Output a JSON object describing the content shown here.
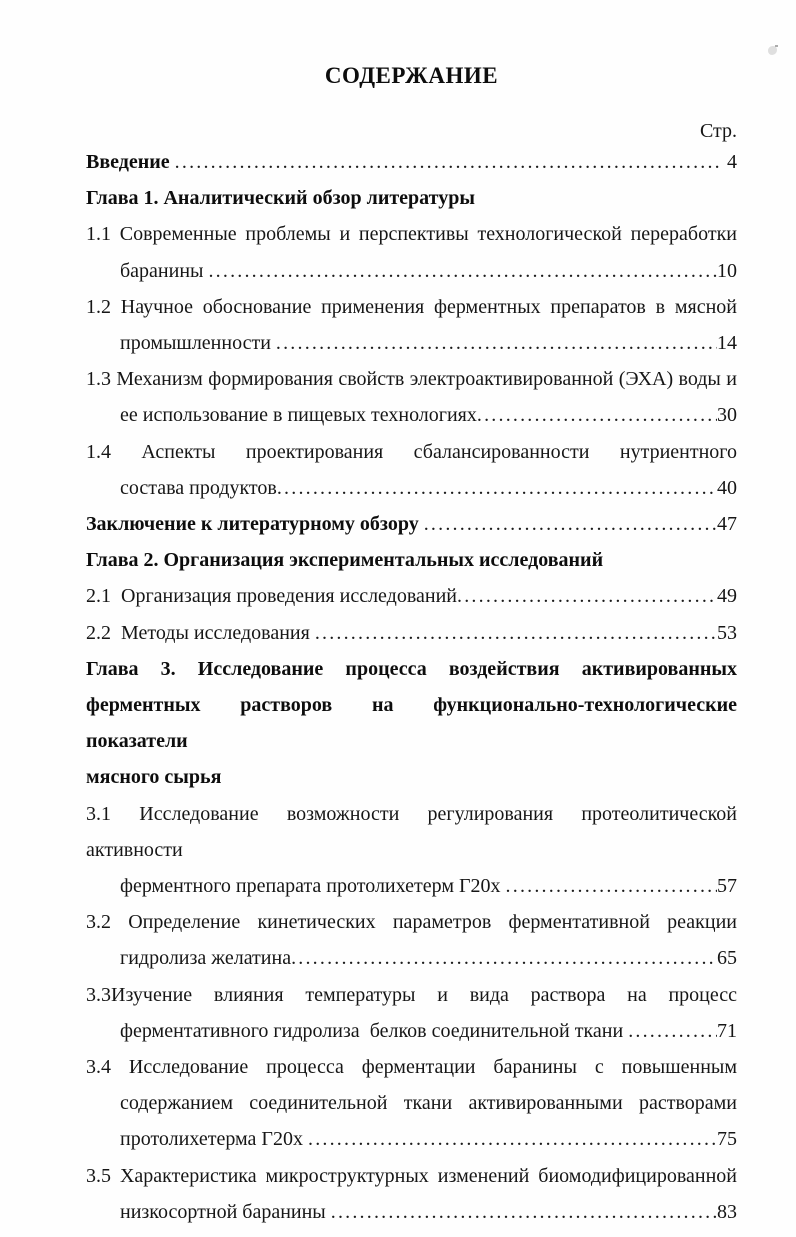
{
  "page": {
    "title": "СОДЕРЖАНИЕ",
    "page_column_label": "Стр."
  },
  "toc": {
    "lines": [
      {
        "text": "Введение ",
        "bold": true,
        "leader": true,
        "page": "4",
        "page_gap": true
      },
      {
        "text": "Глава 1. Аналитический обзор литературы",
        "bold": true
      },
      {
        "text": "1.1 Современные проблемы и перспективы технологической переработки",
        "justify": true
      },
      {
        "text": "баранины ",
        "indent": 1,
        "leader": true,
        "page": "10"
      },
      {
        "text": "1.2 Научное обоснование применения ферментных препаратов в мясной",
        "justify": true
      },
      {
        "text": "промышленности ",
        "indent": 1,
        "leader": true,
        "page": "14"
      },
      {
        "text": "1.3 Механизм формирования свойств электроактивированной (ЭХА) воды и",
        "justify": true
      },
      {
        "text": "ее использование в пищевых технологиях",
        "indent": 1,
        "leader": true,
        "page": "30"
      },
      {
        "text": "1.4 Аспекты проектирования сбалансированности нутриентного",
        "justify": true
      },
      {
        "text": "состава продуктов",
        "indent": 1,
        "leader": true,
        "page": "40"
      },
      {
        "text": "Заключение к литературному обзору ",
        "bold": true,
        "leader": true,
        "page": "47"
      },
      {
        "text": "Глава 2. Организация экспериментальных исследований",
        "bold": true
      },
      {
        "text": "2.1  Организация проведения исследований",
        "leader": true,
        "page": "49"
      },
      {
        "text": "2.2  Методы исследования ",
        "leader": true,
        "page": "53"
      },
      {
        "text": "Глава 3. Исследование процесса воздействия активированных",
        "bold": true,
        "justify": true
      },
      {
        "text": "ферментных растворов на функционально-технологические показатели",
        "bold": true,
        "justify": true
      },
      {
        "text": "мясного сырья",
        "bold": true
      },
      {
        "text": "3.1 Исследование возможности регулирования протеолитической активности",
        "justify": true
      },
      {
        "text": "ферментного препарата протолихетерм Г20х ",
        "indent": 1,
        "leader": true,
        "page": "57"
      },
      {
        "text": "3.2 Определение кинетических параметров ферментативной реакции",
        "justify": true
      },
      {
        "text": "гидролиза желатина",
        "indent": 1,
        "leader": true,
        "page": "65"
      },
      {
        "text": "3.3Изучение влияния температуры и вида раствора на процесс",
        "justify": true
      },
      {
        "text": "ферментативного гидролиза  белков соединительной ткани ",
        "indent": 1,
        "leader": true,
        "page": "71"
      },
      {
        "text": "3.4 Исследование процесса ферментации баранины с повышенным",
        "justify": true
      },
      {
        "text": "содержанием соединительной ткани активированными растворами",
        "indent": 1,
        "justify": true
      },
      {
        "text": "протолихетерма Г20х ",
        "indent": 1,
        "leader": true,
        "page": "75"
      },
      {
        "text": "3.5 Характеристика микроструктурных изменений биомодифицированной",
        "justify": true
      },
      {
        "text": "низкосортной баранины ",
        "indent": 1,
        "leader": true,
        "page": "83"
      }
    ]
  }
}
